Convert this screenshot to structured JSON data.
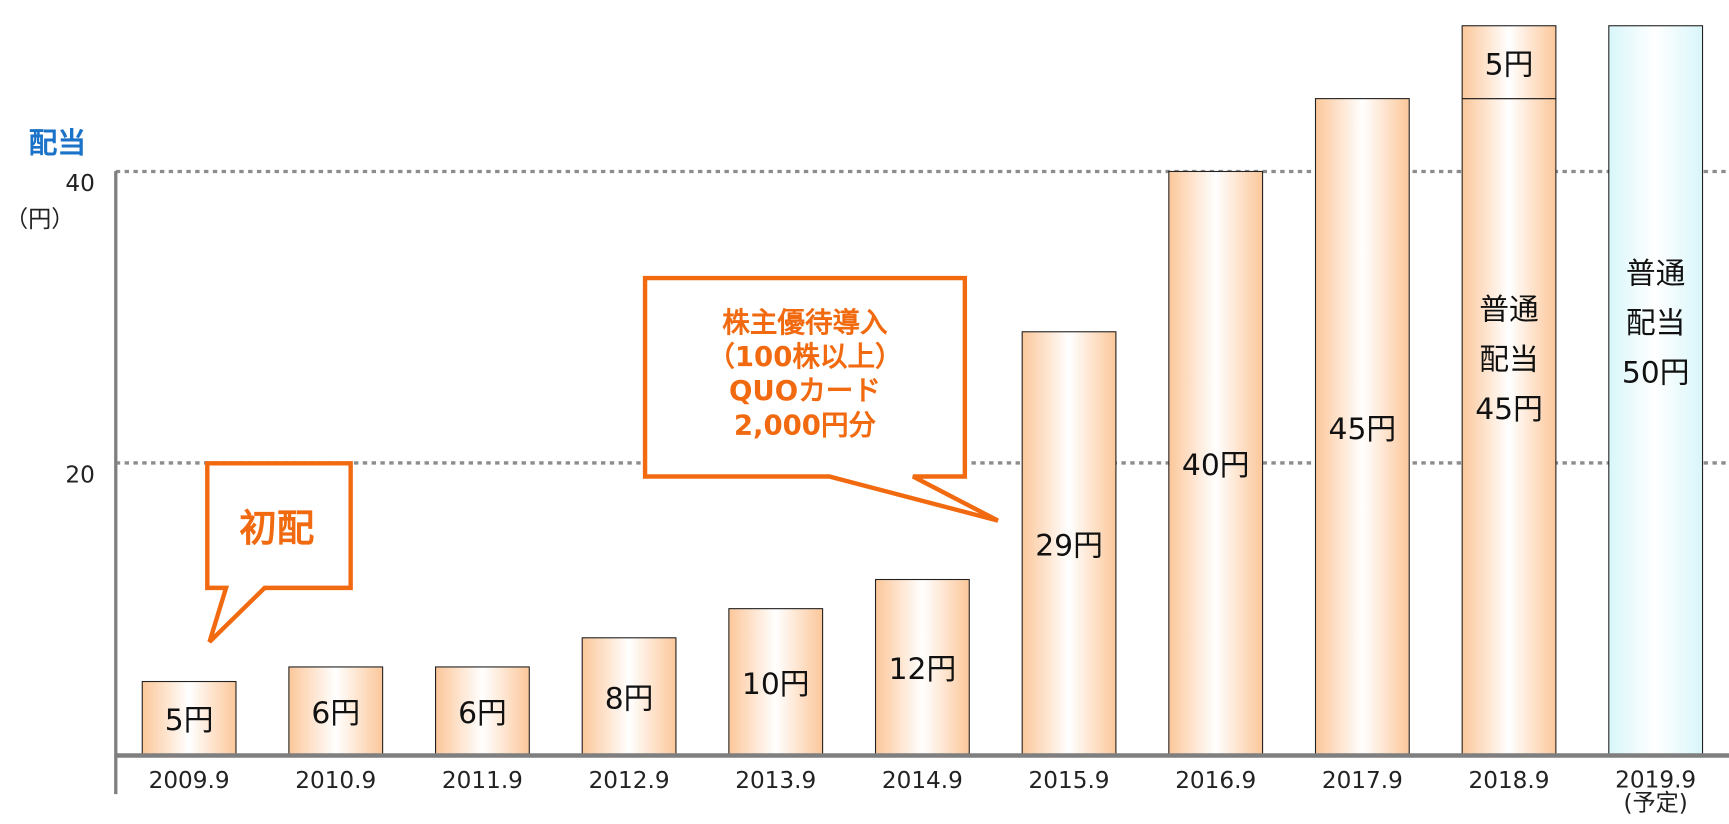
{
  "chart_data": {
    "type": "stacked_bar",
    "title": "配当",
    "y_unit": "（円）",
    "categories": [
      "2009.9",
      "2010.9",
      "2011.9",
      "2012.9",
      "2013.9",
      "2014.9",
      "2015.9",
      "2016.9",
      "2017.9",
      "2018.9",
      "2019.9\n(予定)"
    ],
    "series": [
      {
        "values": [
          5,
          6,
          6,
          8,
          10,
          12,
          29,
          40,
          45,
          45,
          50
        ],
        "value_labels": [
          "5円",
          "6円",
          "6円",
          "8円",
          "10円",
          "12円",
          "29円",
          "40円",
          "45円",
          "普通\n配当\n45円",
          "普通\n配当\n50円"
        ],
        "colors": [
          "#fcc79a",
          "#fcc79a",
          "#fcc79a",
          "#fcc79a",
          "#fcc79a",
          "#fcc79a",
          "#fcc79a",
          "#fcc79a",
          "#fcc79a",
          "#fcc79a",
          "#d8f6fa"
        ]
      },
      {
        "values": [
          null,
          null,
          null,
          null,
          null,
          null,
          null,
          null,
          null,
          5,
          null
        ],
        "value_labels": [
          null,
          null,
          null,
          null,
          null,
          null,
          null,
          null,
          null,
          "5円",
          null
        ],
        "colors": [
          "#fcc79a",
          "#fcc79a",
          "#fcc79a",
          "#fcc79a",
          "#fcc79a",
          "#fcc79a",
          "#fcc79a",
          "#fcc79a",
          "#fcc79a",
          "#fcc79a",
          "#fcc79a"
        ]
      }
    ],
    "ylim": [
      0,
      51
    ],
    "yticks": [
      20,
      40
    ],
    "grid": true,
    "annotations": [
      "初配",
      "株主優待導入\n（100株以上）\nQUOカード\n2,000円分"
    ]
  }
}
